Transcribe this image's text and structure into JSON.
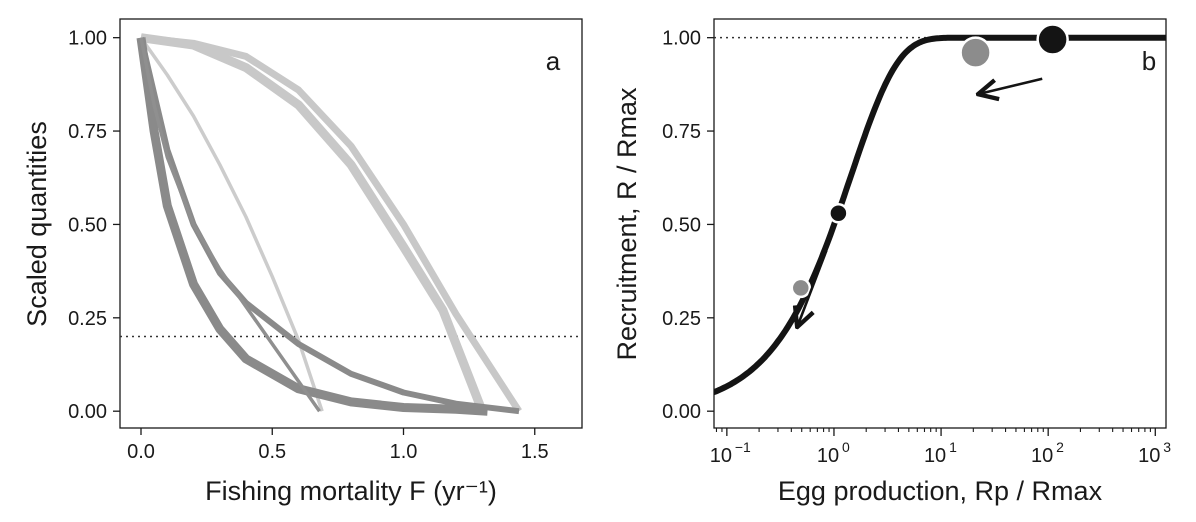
{
  "chart_data": [
    {
      "panel_label": "a",
      "type": "line",
      "xlabel": "Fishing mortality F (yr⁻¹)",
      "ylabel": "Scaled quantities",
      "xlim": [
        -0.08,
        1.68
      ],
      "ylim": [
        -0.045,
        1.05
      ],
      "xticks": [
        0.0,
        0.5,
        1.0,
        1.5
      ],
      "xtick_labels": [
        "0.0",
        "0.5",
        "1.0",
        "1.5"
      ],
      "yticks": [
        0.0,
        0.25,
        0.5,
        0.75,
        1.0
      ],
      "ytick_labels": [
        "0.00",
        "0.25",
        "0.50",
        "0.75",
        "1.00"
      ],
      "reference_line": {
        "y": 0.2,
        "style": "dotted"
      },
      "grid": false,
      "series": [
        {
          "color": "#c8c8c8",
          "width": 9,
          "x": [
            0.0,
            0.2,
            0.4,
            0.6,
            0.8,
            1.0,
            1.15,
            1.3
          ],
          "y": [
            1.0,
            0.98,
            0.92,
            0.82,
            0.66,
            0.44,
            0.27,
            0.0
          ]
        },
        {
          "color": "#c8c8c8",
          "width": 7,
          "x": [
            0.0,
            0.2,
            0.4,
            0.6,
            0.8,
            1.0,
            1.2,
            1.44
          ],
          "y": [
            1.0,
            0.985,
            0.95,
            0.86,
            0.71,
            0.5,
            0.26,
            0.0
          ]
        },
        {
          "color": "#cccccc",
          "width": 3.5,
          "x": [
            0.0,
            0.1,
            0.2,
            0.3,
            0.4,
            0.5,
            0.6,
            0.69
          ],
          "y": [
            1.0,
            0.9,
            0.79,
            0.66,
            0.52,
            0.36,
            0.19,
            0.0
          ]
        },
        {
          "color": "#8a8a8a",
          "width": 9,
          "x": [
            0.0,
            0.05,
            0.1,
            0.2,
            0.3,
            0.4,
            0.6,
            0.8,
            1.0,
            1.2,
            1.32
          ],
          "y": [
            1.0,
            0.75,
            0.55,
            0.34,
            0.22,
            0.14,
            0.06,
            0.025,
            0.01,
            0.005,
            0.0
          ]
        },
        {
          "color": "#8a8a8a",
          "width": 6,
          "x": [
            0.0,
            0.1,
            0.2,
            0.3,
            0.4,
            0.6,
            0.8,
            1.0,
            1.2,
            1.44
          ],
          "y": [
            1.0,
            0.7,
            0.5,
            0.37,
            0.29,
            0.18,
            0.1,
            0.05,
            0.02,
            0.0
          ]
        },
        {
          "color": "#8f8f8f",
          "width": 3.5,
          "x": [
            0.0,
            0.05,
            0.1,
            0.2,
            0.3,
            0.4,
            0.5,
            0.6,
            0.68
          ],
          "y": [
            1.0,
            0.82,
            0.68,
            0.5,
            0.38,
            0.28,
            0.18,
            0.08,
            0.0
          ]
        }
      ]
    },
    {
      "panel_label": "b",
      "type": "line",
      "xscale": "log",
      "xlabel": "Egg production, Rp / Rmax",
      "ylabel": "Recruitment, R / Rmax",
      "xlim_log10": [
        -1.12,
        3.1
      ],
      "ylim": [
        -0.045,
        1.05
      ],
      "xticks_log10": [
        -1,
        0,
        1,
        2,
        3
      ],
      "xtick_labels": [
        {
          "base": "10",
          "exp": "−1"
        },
        {
          "base": "10",
          "exp": "0"
        },
        {
          "base": "10",
          "exp": "1"
        },
        {
          "base": "10",
          "exp": "2"
        },
        {
          "base": "10",
          "exp": "3"
        }
      ],
      "yticks": [
        0.0,
        0.25,
        0.5,
        0.75,
        1.0
      ],
      "ytick_labels": [
        "0.00",
        "0.25",
        "0.50",
        "0.75",
        "1.00"
      ],
      "reference_line": {
        "y": 1.0,
        "style": "dotted"
      },
      "grid": false,
      "curve": {
        "color": "#141414",
        "width": 6,
        "model": "Beverton–Holt-type saturating curve R/Rmax = 1 − exp(−0.69·Rp/Rmax)"
      },
      "points": [
        {
          "x": 0.49,
          "y": 0.33,
          "color": "#8c8c8c",
          "size": "small"
        },
        {
          "x": 1.1,
          "y": 0.53,
          "color": "#141414",
          "size": "small"
        },
        {
          "x": 21,
          "y": 0.96,
          "color": "#8c8c8c",
          "size": "large"
        },
        {
          "x": 110,
          "y": 0.995,
          "color": "#141414",
          "size": "large"
        }
      ],
      "arrows": [
        {
          "from": [
            0.85,
            0.43
          ],
          "to": [
            0.46,
            0.23
          ]
        },
        {
          "from": [
            88,
            0.89
          ],
          "to": [
            23,
            0.85
          ]
        }
      ]
    }
  ]
}
